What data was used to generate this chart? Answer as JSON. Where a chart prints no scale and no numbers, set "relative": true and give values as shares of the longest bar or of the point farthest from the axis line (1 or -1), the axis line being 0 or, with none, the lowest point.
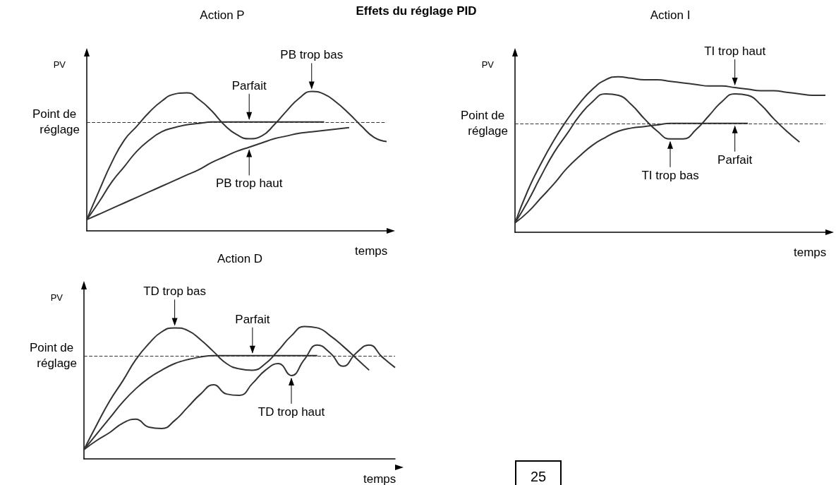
{
  "chart_data": [
    {
      "type": "other",
      "title": "Effets du réglage PID",
      "annotations": [
        "25"
      ]
    },
    {
      "type": "line",
      "title": "Action P",
      "xlabel": "temps",
      "ylabel": "PV",
      "relative": true,
      "marker": "none",
      "categories": [
        null,
        null,
        null,
        null,
        null,
        null,
        null,
        null,
        null,
        null,
        null,
        null,
        null,
        null,
        null,
        null,
        null,
        null,
        null,
        null,
        null,
        null,
        null,
        null,
        null
      ],
      "series": [
        {
          "name": "PB trop bas",
          "color": "#333333",
          "values": [
            0.08,
            0.29,
            0.49,
            0.65,
            0.75,
            0.85,
            0.93,
            0.98,
            0.99,
            0.94,
            0.86,
            0.76,
            0.69,
            0.66,
            0.68,
            0.76,
            0.86,
            0.95,
            1.0,
            0.98,
            0.92,
            0.84,
            0.75,
            0.67,
            0.64
          ]
        },
        {
          "name": "Parfait",
          "color": "#333333",
          "values": [
            0.08,
            0.21,
            0.35,
            0.46,
            0.57,
            0.65,
            0.71,
            0.74,
            0.76,
            0.77,
            0.78,
            0.78,
            0.78,
            0.78,
            0.78,
            0.78,
            0.78,
            0.78,
            0.78,
            0.78,
            null,
            null,
            null,
            null,
            null
          ]
        },
        {
          "name": "PB trop haut",
          "color": "#333333",
          "values": [
            0.08,
            0.12,
            0.16,
            0.2,
            0.24,
            0.28,
            0.32,
            0.36,
            0.4,
            0.44,
            0.49,
            0.53,
            0.57,
            0.6,
            0.63,
            0.66,
            0.68,
            0.7,
            0.71,
            0.72,
            0.73,
            0.74,
            null,
            null,
            null
          ]
        }
      ],
      "ref_lines": [
        {
          "axis": "y",
          "value": 0.78,
          "label": "Point de réglage",
          "line_style": "dashed",
          "color": "#333333"
        }
      ]
    },
    {
      "type": "line",
      "title": "Action I",
      "xlabel": "temps",
      "ylabel": "PV",
      "relative": true,
      "marker": "none",
      "categories": [
        null,
        null,
        null,
        null,
        null,
        null,
        null,
        null,
        null,
        null,
        null,
        null,
        null,
        null,
        null,
        null,
        null,
        null,
        null,
        null,
        null,
        null,
        null,
        null,
        null
      ],
      "series": [
        {
          "name": "TI trop haut",
          "color": "#333333",
          "values": [
            0.06,
            0.27,
            0.44,
            0.59,
            0.72,
            0.83,
            0.92,
            0.98,
            1.0,
            0.99,
            0.98,
            0.98,
            0.97,
            0.96,
            0.95,
            0.94,
            0.94,
            0.93,
            0.92,
            0.91,
            0.91,
            0.9,
            0.89,
            0.88,
            0.88
          ]
        },
        {
          "name": "TI trop bas",
          "color": "#333333",
          "values": [
            0.06,
            0.2,
            0.36,
            0.51,
            0.63,
            0.75,
            0.84,
            0.89,
            0.88,
            0.82,
            0.73,
            0.65,
            0.6,
            0.6,
            0.66,
            0.75,
            0.84,
            0.89,
            0.88,
            0.82,
            0.73,
            0.65,
            0.58,
            null,
            null
          ]
        },
        {
          "name": "Parfait",
          "color": "#333333",
          "values": [
            0.06,
            0.13,
            0.22,
            0.31,
            0.41,
            0.49,
            0.56,
            0.61,
            0.65,
            0.67,
            0.68,
            0.69,
            0.7,
            0.7,
            0.7,
            0.7,
            0.7,
            0.7,
            0.7,
            null,
            null,
            null,
            null,
            null,
            null
          ]
        }
      ],
      "ref_lines": [
        {
          "axis": "y",
          "value": 0.7,
          "label": "Point de réglage",
          "line_style": "dashed",
          "color": "#333333"
        }
      ]
    },
    {
      "type": "line",
      "title": "Action D",
      "xlabel": "temps",
      "ylabel": "PV",
      "relative": true,
      "marker": "none",
      "categories": [
        null,
        null,
        null,
        null,
        null,
        null,
        null,
        null,
        null,
        null,
        null,
        null,
        null,
        null,
        null,
        null,
        null,
        null,
        null,
        null,
        null,
        null,
        null,
        null,
        null
      ],
      "series": [
        {
          "name": "TD trop bas",
          "color": "#333333",
          "values": [
            0.07,
            0.26,
            0.44,
            0.59,
            0.75,
            0.87,
            0.96,
            0.99,
            0.97,
            0.9,
            0.81,
            0.72,
            0.68,
            0.67,
            0.72,
            0.82,
            0.93,
            1.0,
            0.99,
            0.93,
            0.85,
            0.76,
            0.67,
            null,
            null
          ]
        },
        {
          "name": "Parfait",
          "color": "#333333",
          "values": [
            0.07,
            0.19,
            0.31,
            0.43,
            0.53,
            0.61,
            0.67,
            0.72,
            0.75,
            0.77,
            0.78,
            0.78,
            0.78,
            0.78,
            0.78,
            0.78,
            0.78,
            0.78,
            0.78,
            null,
            null,
            null,
            null,
            null,
            null
          ]
        },
        {
          "name": "TD trop haut",
          "color": "#333333",
          "values": [
            0.07,
            0.14,
            0.2,
            0.27,
            0.3,
            0.24,
            0.23,
            0.29,
            0.39,
            0.49,
            0.56,
            0.49,
            0.48,
            0.57,
            0.67,
            0.72,
            0.63,
            0.75,
            0.86,
            0.8,
            0.7,
            0.8,
            0.86,
            0.77,
            0.69
          ]
        }
      ],
      "ref_lines": [
        {
          "axis": "y",
          "value": 0.78,
          "label": "Point de réglage",
          "line_style": "dashed",
          "color": "#333333"
        }
      ]
    }
  ]
}
